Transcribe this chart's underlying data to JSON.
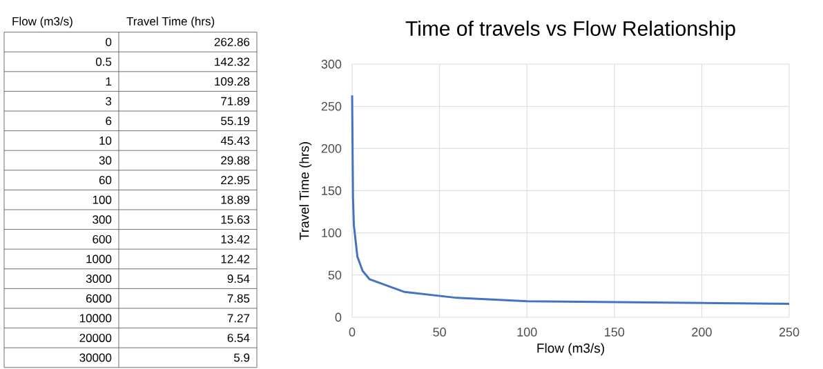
{
  "chart_data": [
    {
      "type": "other",
      "xlabel": "Flow (m3/s)",
      "ylabel": "Travel Time (hrs)",
      "categories": [
        "0",
        "0.5",
        "1",
        "3",
        "6",
        "10",
        "30",
        "60",
        "100",
        "300",
        "600",
        "1000",
        "3000",
        "6000",
        "10000",
        "20000",
        "30000"
      ],
      "values": [
        262.86,
        142.32,
        109.28,
        71.89,
        55.19,
        45.43,
        29.88,
        22.95,
        18.89,
        15.63,
        13.42,
        12.42,
        9.54,
        7.85,
        7.27,
        6.54,
        5.9
      ],
      "data_labels": true
    },
    {
      "type": "line",
      "title": "Time of travels vs Flow Relationship",
      "xlabel": "Flow (m3/s)",
      "ylabel": "Travel Time (hrs)",
      "x": [
        0,
        0.5,
        1,
        3,
        6,
        10,
        30,
        60,
        100,
        250
      ],
      "values": [
        263,
        142,
        109,
        72,
        55,
        45,
        30,
        23,
        19,
        16
      ],
      "color": "#4472c4",
      "xlim": [
        0,
        250
      ],
      "ylim": [
        0,
        300
      ],
      "xticks": [
        0,
        50,
        100,
        150,
        200,
        250
      ],
      "yticks": [
        0,
        50,
        100,
        150,
        200,
        250,
        300
      ],
      "grid": true,
      "marker": "none",
      "line_style": "solid"
    }
  ]
}
